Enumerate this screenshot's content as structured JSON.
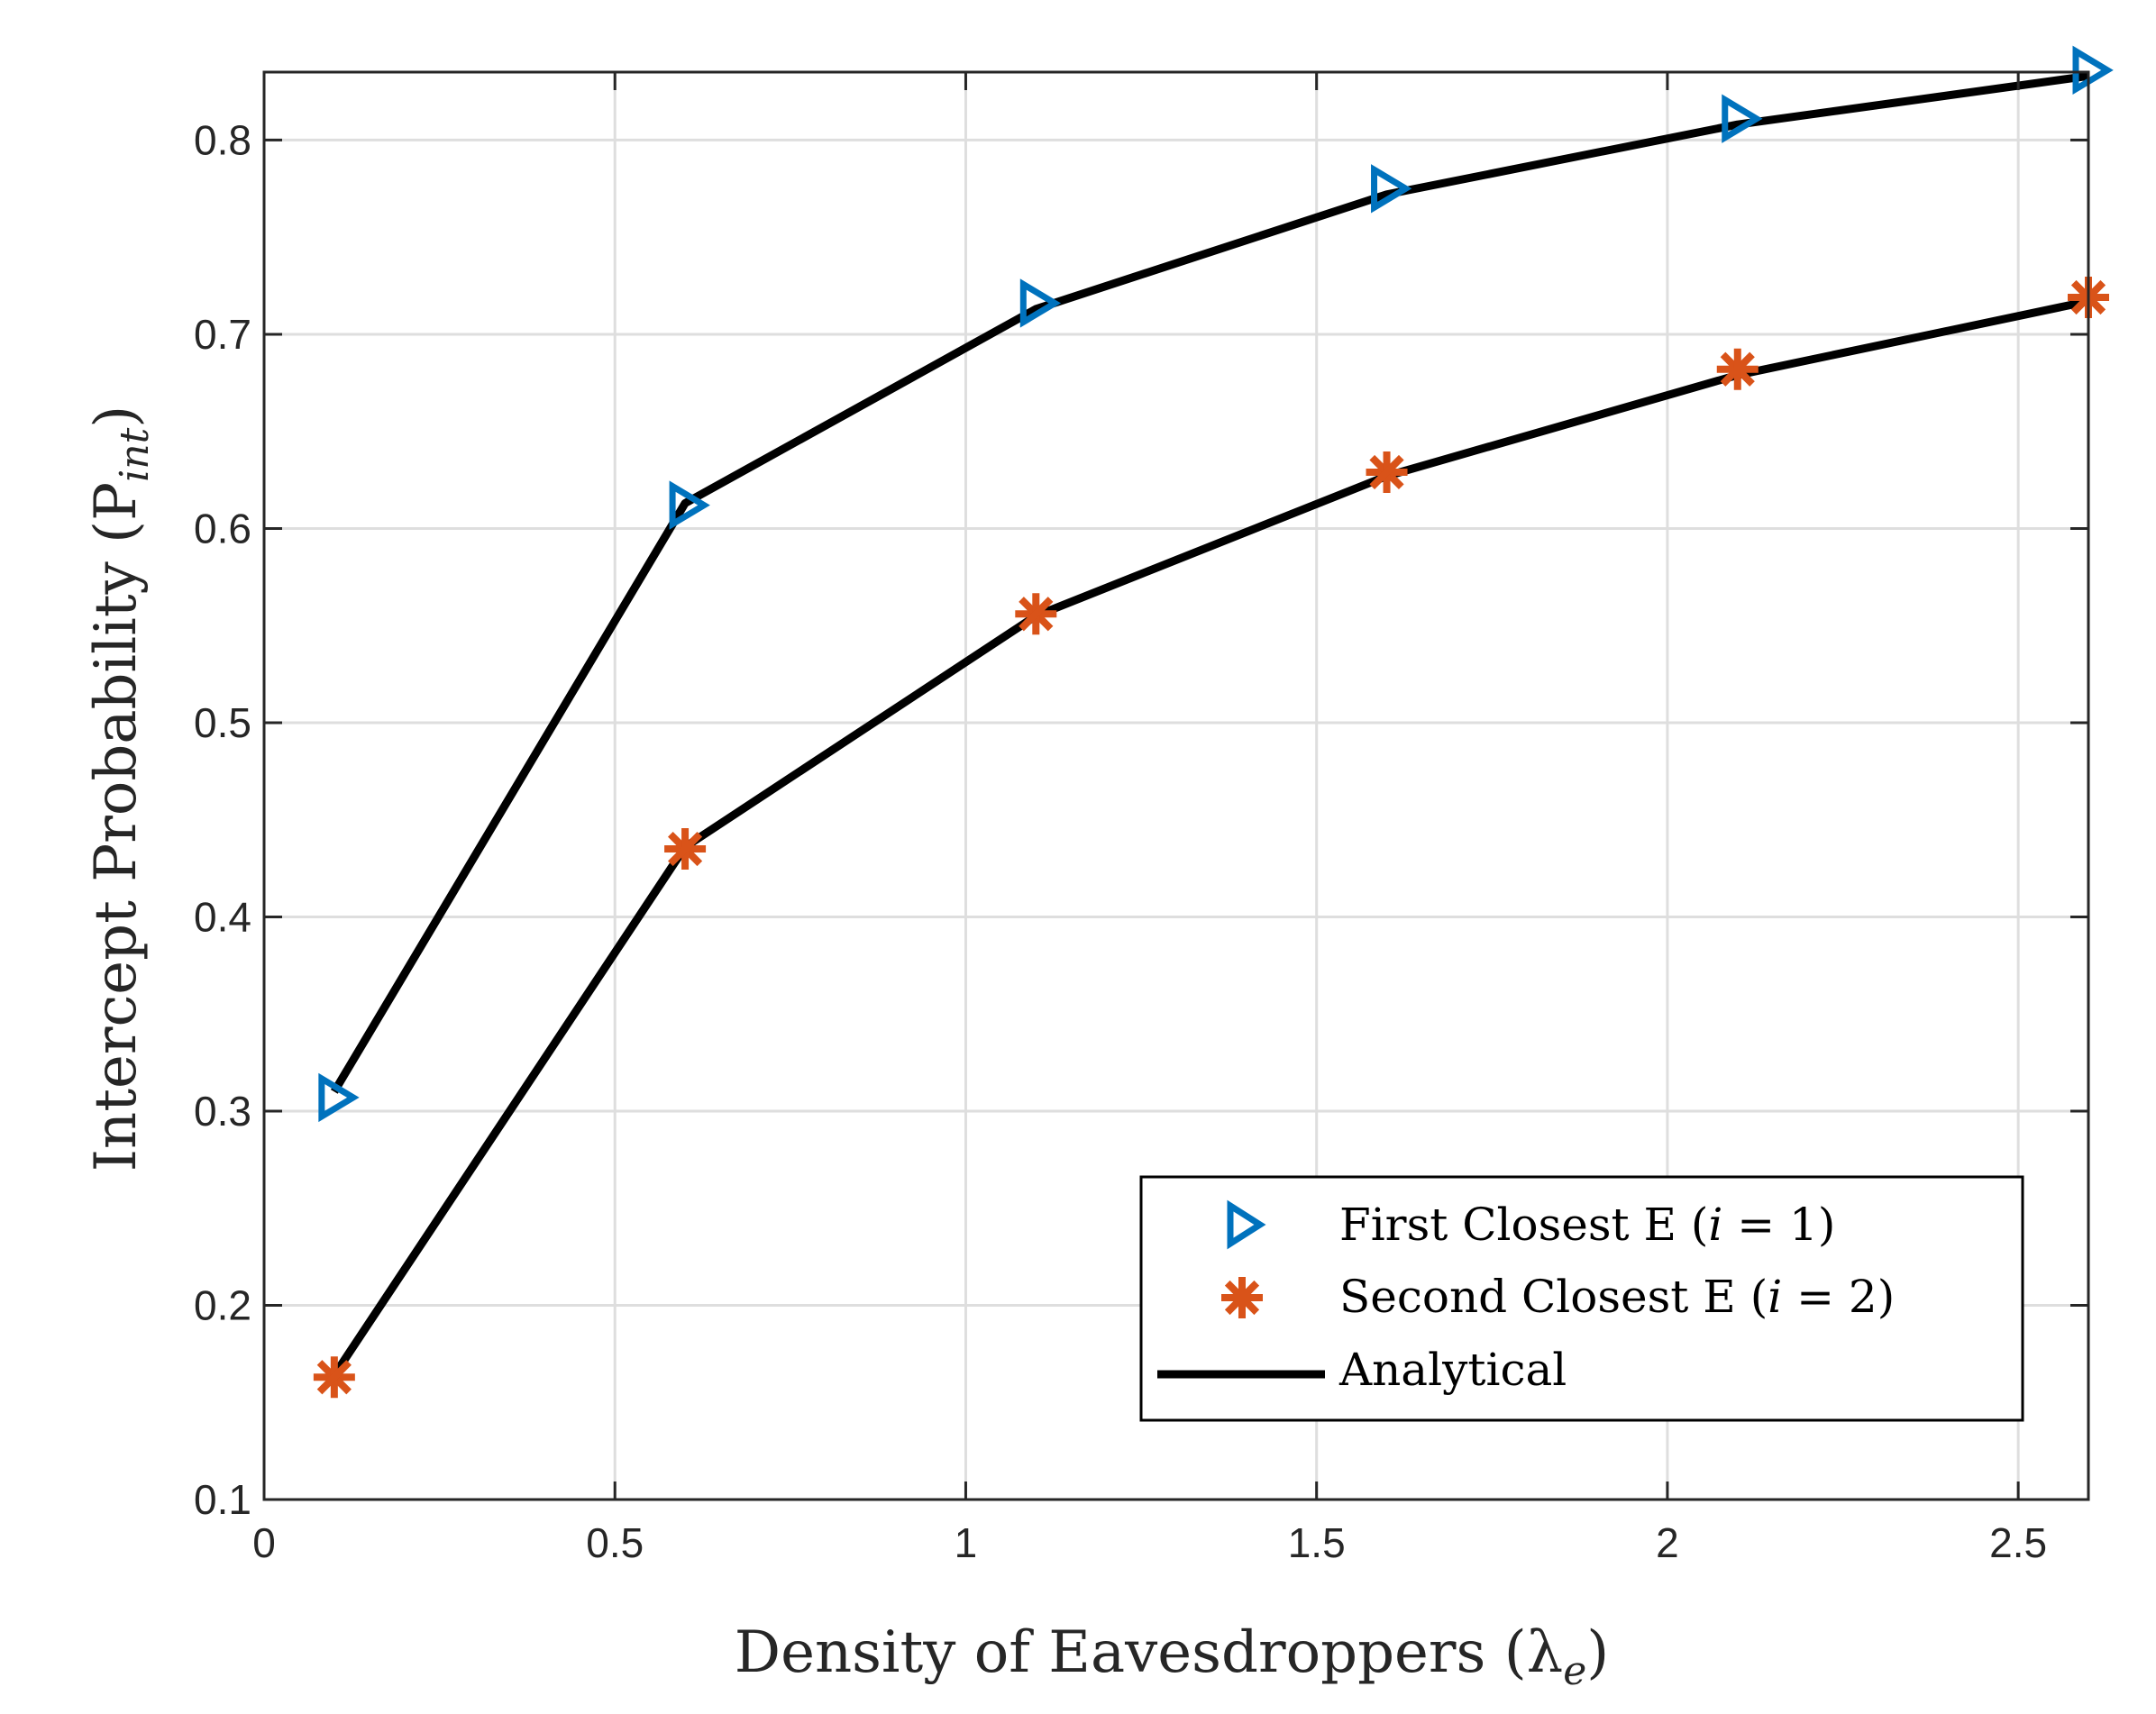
{
  "chart_data": {
    "type": "line",
    "title": "",
    "xlabel": "Density of Eavesdroppers (λ",
    "xlabel_sub": "e",
    "xlabel_close": ")",
    "ylabel": "Intercept Probability (P",
    "ylabel_sub": "int",
    "ylabel_close": ")",
    "xlim": [
      0,
      2.6
    ],
    "ylim": [
      0.1,
      0.835
    ],
    "xticks": [
      0,
      0.5,
      1,
      1.5,
      2,
      2.5
    ],
    "xtick_labels": [
      "0",
      "0.5",
      "1",
      "1.5",
      "2",
      "2.5"
    ],
    "yticks": [
      0.1,
      0.2,
      0.3,
      0.4,
      0.5,
      0.6,
      0.7,
      0.8
    ],
    "ytick_labels": [
      "0.1",
      "0.2",
      "0.3",
      "0.4",
      "0.5",
      "0.6",
      "0.7",
      "0.8"
    ],
    "grid": true,
    "legend_position": "bottom-right",
    "series": [
      {
        "name": "First Closest E (i = 1)",
        "marker": "triangle-right",
        "color": "#0072BD",
        "x": [
          0.1,
          0.6,
          1.1,
          1.6,
          2.1,
          2.6
        ],
        "y": [
          0.307,
          0.612,
          0.716,
          0.775,
          0.811,
          0.836
        ]
      },
      {
        "name": "Second Closest E (i = 2)",
        "marker": "asterisk",
        "color": "#D95319",
        "x": [
          0.1,
          0.6,
          1.1,
          1.6,
          2.1,
          2.6
        ],
        "y": [
          0.163,
          0.435,
          0.556,
          0.629,
          0.682,
          0.719
        ]
      },
      {
        "name": "Analytical",
        "marker": "none",
        "color": "#000000",
        "x": [
          0.1,
          0.6,
          1.1,
          1.6,
          2.1,
          2.6
        ],
        "y": [
          0.31,
          0.613,
          0.713,
          0.772,
          0.808,
          0.833
        ]
      },
      {
        "name": "",
        "marker": "none",
        "color": "#000000",
        "x": [
          0.1,
          0.6,
          1.1,
          1.6,
          2.1,
          2.6
        ],
        "y": [
          0.164,
          0.436,
          0.555,
          0.627,
          0.679,
          0.717
        ]
      }
    ],
    "legend": {
      "entries": [
        {
          "text": "First Closest E (",
          "math": "i",
          "rest": " = 1)"
        },
        {
          "text": "Second Closest E (",
          "math": "i",
          "rest": " = 2)"
        },
        {
          "text": "Analytical",
          "math": "",
          "rest": ""
        }
      ]
    }
  }
}
